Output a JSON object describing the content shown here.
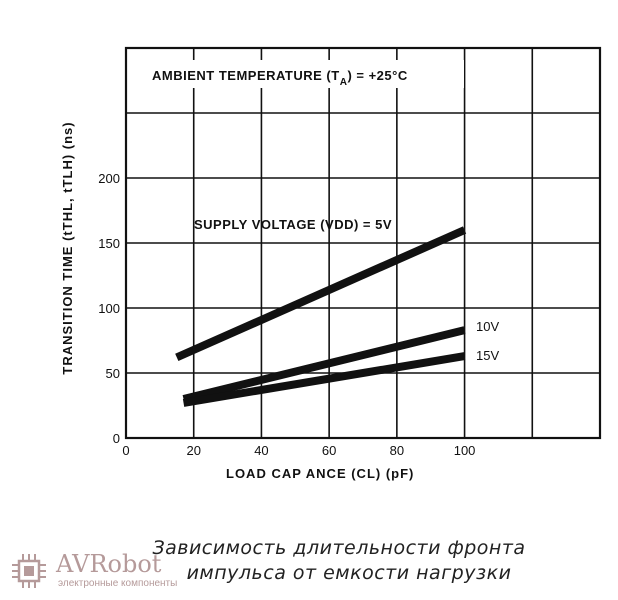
{
  "chart_data": {
    "type": "line",
    "xlabel": "LOAD CAP      ANCE (CL) (pF)",
    "ylabel": "TRANSITION TIME (tTHL, tTLH) (ns)",
    "annotation": "AMBIENT TEMPERATURE (T_A) = +25°C",
    "annotation_parts": {
      "pre": "AMBIENT TEMPERATURE (T",
      "sub": "A",
      "post": ") = +25°C"
    },
    "xlim": [
      0,
      140
    ],
    "ylim": [
      0,
      300
    ],
    "x_ticks": [
      0,
      20,
      40,
      60,
      80,
      100
    ],
    "y_ticks": [
      0,
      50,
      100,
      150,
      200
    ],
    "x_tick_labels": [
      "0",
      "20",
      "40",
      "60",
      "80",
      "100"
    ],
    "y_tick_labels": [
      "0",
      "50",
      "100",
      "150",
      "200"
    ],
    "grid": true,
    "series": [
      {
        "name": "SUPPLY VOLTAGE (VDD) = 5V",
        "x": [
          15,
          100
        ],
        "y": [
          62,
          160
        ]
      },
      {
        "name": "10V",
        "x": [
          17,
          100
        ],
        "y": [
          30,
          83
        ]
      },
      {
        "name": "15V",
        "x": [
          17,
          100
        ],
        "y": [
          27,
          63
        ]
      }
    ],
    "colors": {
      "line": "#111111",
      "grid": "#111111"
    }
  },
  "caption": {
    "line1": "Зависимость длительности фронта",
    "line2": "импульса от емкости нагрузки"
  },
  "watermark": {
    "brand": "AVRobot",
    "subtitle": "электронные компоненты",
    "color": "#b59a9a"
  }
}
